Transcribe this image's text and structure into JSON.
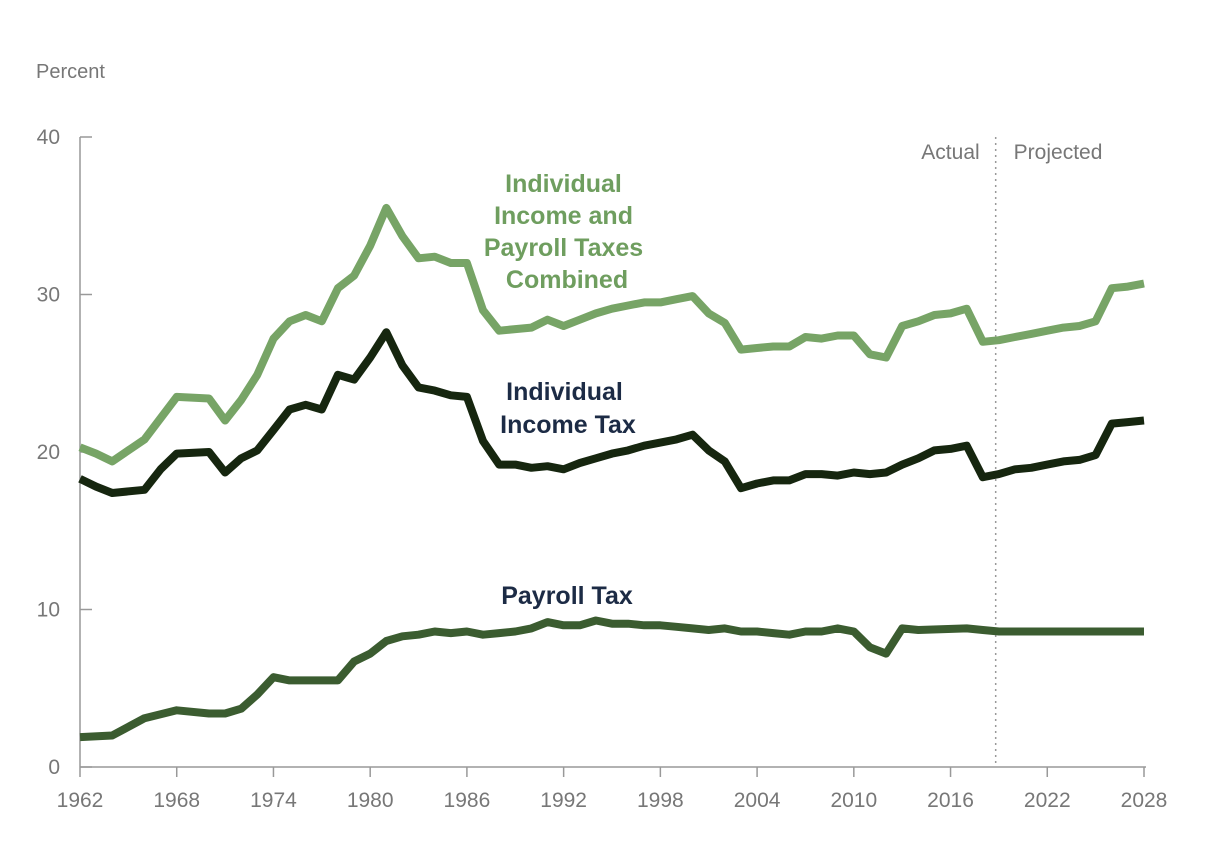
{
  "chart_data": {
    "type": "line",
    "ylabel": "Percent",
    "ylim": [
      0,
      40
    ],
    "yticks": [
      "0",
      "10",
      "20",
      "30",
      "40"
    ],
    "xlim": [
      1962,
      2028
    ],
    "xticks": [
      "1962",
      "1968",
      "1974",
      "1980",
      "1986",
      "1992",
      "1998",
      "2004",
      "2010",
      "2016",
      "2022",
      "2028"
    ],
    "grid": false,
    "divider": {
      "year": 2018.8,
      "left_label": "Actual",
      "right_label": "Projected"
    },
    "series": [
      {
        "name": "Individual Income and Payroll Taxes Combined",
        "label_lines": [
          "Individual",
          "Income and",
          "Payroll Taxes",
          "Combined"
        ],
        "color": "#77a466",
        "label_color": "#6f9e5f",
        "x": [
          1962,
          1963,
          1964,
          1966,
          1968,
          1970,
          1971,
          1972,
          1973,
          1974,
          1975,
          1976,
          1977,
          1978,
          1979,
          1980,
          1981,
          1982,
          1983,
          1984,
          1985,
          1986,
          1987,
          1988,
          1989,
          1990,
          1991,
          1992,
          1993,
          1994,
          1995,
          1996,
          1997,
          1998,
          1999,
          2000,
          2001,
          2002,
          2003,
          2004,
          2005,
          2006,
          2007,
          2008,
          2009,
          2010,
          2011,
          2012,
          2013,
          2014,
          2015,
          2016,
          2017,
          2018,
          2019,
          2020,
          2021,
          2022,
          2023,
          2024,
          2025,
          2026,
          2027,
          2028
        ],
        "y": [
          20.3,
          19.9,
          19.4,
          20.8,
          23.5,
          23.4,
          22.0,
          23.3,
          24.9,
          27.2,
          28.3,
          28.7,
          28.3,
          30.4,
          31.2,
          33.1,
          35.5,
          33.7,
          32.3,
          32.4,
          32.0,
          32.0,
          29.0,
          27.7,
          27.8,
          27.9,
          28.4,
          28.0,
          28.4,
          28.8,
          29.1,
          29.3,
          29.5,
          29.5,
          29.7,
          29.9,
          28.8,
          28.2,
          26.5,
          26.6,
          26.7,
          26.7,
          27.3,
          27.2,
          27.4,
          27.4,
          26.2,
          26.0,
          28.0,
          28.3,
          28.7,
          28.8,
          29.1,
          27.0,
          27.1,
          27.3,
          27.5,
          27.7,
          27.9,
          28.0,
          28.3,
          30.4,
          30.5,
          30.7
        ]
      },
      {
        "name": "Individual Income Tax",
        "label_lines": [
          "Individual",
          "Income Tax"
        ],
        "color": "#16260f",
        "label_color": "#1c2b45",
        "x": [
          1962,
          1963,
          1964,
          1966,
          1967,
          1968,
          1970,
          1971,
          1972,
          1973,
          1974,
          1975,
          1976,
          1977,
          1978,
          1979,
          1980,
          1981,
          1982,
          1983,
          1984,
          1985,
          1986,
          1987,
          1988,
          1989,
          1990,
          1991,
          1992,
          1993,
          1994,
          1995,
          1996,
          1997,
          1998,
          1999,
          2000,
          2001,
          2002,
          2003,
          2004,
          2005,
          2006,
          2007,
          2008,
          2009,
          2010,
          2011,
          2012,
          2013,
          2014,
          2015,
          2016,
          2017,
          2018,
          2019,
          2020,
          2021,
          2022,
          2023,
          2024,
          2025,
          2026,
          2027,
          2028
        ],
        "y": [
          18.3,
          17.8,
          17.4,
          17.6,
          18.9,
          19.9,
          20.0,
          18.7,
          19.6,
          20.1,
          21.4,
          22.7,
          23.0,
          22.7,
          24.9,
          24.6,
          26.0,
          27.6,
          25.5,
          24.1,
          23.9,
          23.6,
          23.5,
          20.7,
          19.2,
          19.2,
          19.0,
          19.1,
          18.9,
          19.3,
          19.6,
          19.9,
          20.1,
          20.4,
          20.6,
          20.8,
          21.1,
          20.1,
          19.4,
          17.7,
          18.0,
          18.2,
          18.2,
          18.6,
          18.6,
          18.5,
          18.7,
          18.6,
          18.7,
          19.2,
          19.6,
          20.1,
          20.2,
          20.4,
          18.4,
          18.6,
          18.9,
          19.0,
          19.2,
          19.4,
          19.5,
          19.8,
          21.8,
          21.9,
          22.0
        ]
      },
      {
        "name": "Payroll Tax",
        "label_lines": [
          "Payroll Tax"
        ],
        "color": "#3b5c30",
        "label_color": "#1c2b45",
        "x": [
          1962,
          1964,
          1966,
          1968,
          1970,
          1971,
          1972,
          1973,
          1974,
          1975,
          1978,
          1979,
          1980,
          1981,
          1982,
          1983,
          1984,
          1985,
          1986,
          1987,
          1988,
          1989,
          1990,
          1991,
          1992,
          1993,
          1994,
          1995,
          1996,
          1997,
          1998,
          1999,
          2000,
          2001,
          2002,
          2003,
          2004,
          2005,
          2006,
          2007,
          2008,
          2009,
          2010,
          2011,
          2012,
          2013,
          2014,
          2017,
          2018,
          2019,
          2028
        ],
        "y": [
          1.9,
          2.0,
          3.1,
          3.6,
          3.4,
          3.4,
          3.7,
          4.6,
          5.7,
          5.5,
          5.5,
          6.7,
          7.2,
          8.0,
          8.3,
          8.4,
          8.6,
          8.5,
          8.6,
          8.4,
          8.5,
          8.6,
          8.8,
          9.2,
          9.0,
          9.0,
          9.3,
          9.1,
          9.1,
          9.0,
          9.0,
          8.9,
          8.8,
          8.7,
          8.8,
          8.6,
          8.6,
          8.5,
          8.4,
          8.6,
          8.6,
          8.8,
          8.6,
          7.6,
          7.2,
          8.8,
          8.7,
          8.8,
          8.7,
          8.6,
          8.6
        ]
      }
    ]
  }
}
